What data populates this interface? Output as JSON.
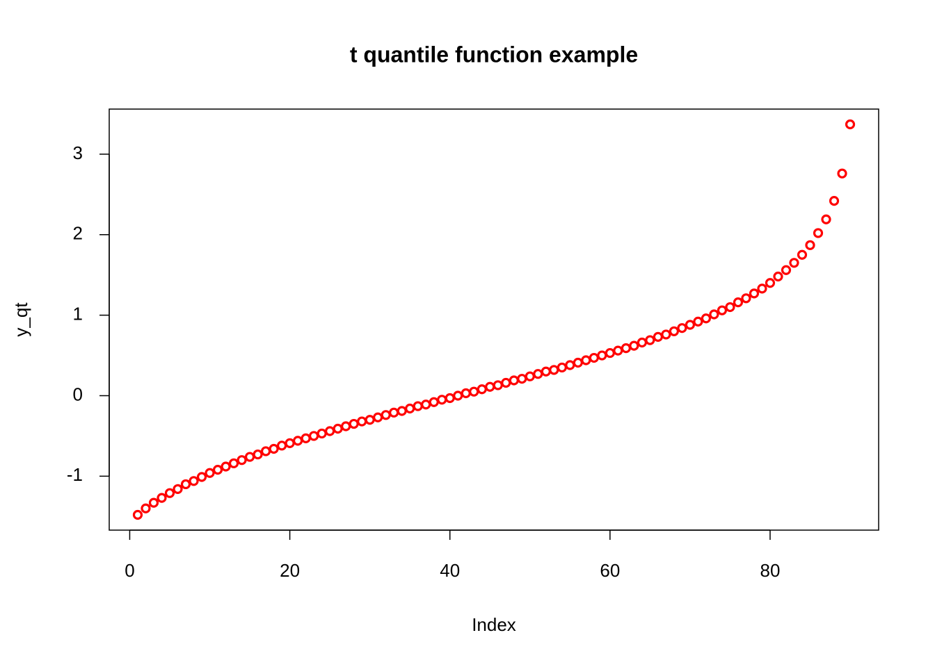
{
  "chart_data": {
    "type": "scatter",
    "title": "t quantile function example",
    "x_label": "Index",
    "y_label": "y_qt",
    "x": [
      1,
      2,
      3,
      4,
      5,
      6,
      7,
      8,
      9,
      10,
      11,
      12,
      13,
      14,
      15,
      16,
      17,
      18,
      19,
      20,
      21,
      22,
      23,
      24,
      25,
      26,
      27,
      28,
      29,
      30,
      31,
      32,
      33,
      34,
      35,
      36,
      37,
      38,
      39,
      40,
      41,
      42,
      43,
      44,
      45,
      46,
      47,
      48,
      49,
      50,
      51,
      52,
      53,
      54,
      55,
      56,
      57,
      58,
      59,
      60,
      61,
      62,
      63,
      64,
      65,
      66,
      67,
      68,
      69,
      70,
      71,
      72,
      73,
      74,
      75,
      76,
      77,
      78,
      79,
      80,
      81,
      82,
      83,
      84,
      85,
      86,
      87,
      88,
      89,
      90
    ],
    "values": [
      -1.48,
      -1.4,
      -1.33,
      -1.27,
      -1.21,
      -1.16,
      -1.1,
      -1.06,
      -1.01,
      -0.96,
      -0.92,
      -0.88,
      -0.84,
      -0.8,
      -0.76,
      -0.73,
      -0.69,
      -0.66,
      -0.62,
      -0.59,
      -0.56,
      -0.53,
      -0.5,
      -0.47,
      -0.44,
      -0.41,
      -0.38,
      -0.35,
      -0.32,
      -0.3,
      -0.27,
      -0.24,
      -0.21,
      -0.19,
      -0.16,
      -0.13,
      -0.11,
      -0.08,
      -0.05,
      -0.03,
      0,
      0.03,
      0.05,
      0.08,
      0.11,
      0.13,
      0.16,
      0.19,
      0.21,
      0.24,
      0.27,
      0.3,
      0.32,
      0.35,
      0.38,
      0.41,
      0.44,
      0.47,
      0.5,
      0.53,
      0.56,
      0.59,
      0.62,
      0.66,
      0.69,
      0.73,
      0.76,
      0.8,
      0.84,
      0.88,
      0.92,
      0.96,
      1.01,
      1.06,
      1.1,
      1.16,
      1.21,
      1.27,
      1.33,
      1.4,
      1.48,
      1.56,
      1.65,
      1.75,
      1.87,
      2.02,
      2.19,
      2.42,
      2.76,
      3.37
    ],
    "color": "#ff0000",
    "xlim": [
      -2.56,
      93.56
    ],
    "xticks": [
      0,
      20,
      40,
      60,
      80
    ],
    "ylim": [
      -1.67,
      3.56
    ],
    "yticks": [
      -1,
      0,
      1,
      2,
      3
    ]
  }
}
